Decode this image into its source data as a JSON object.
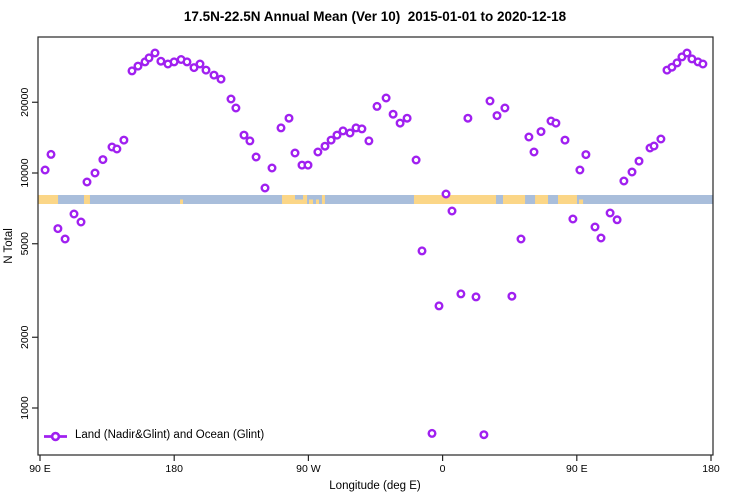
{
  "title": "17.5N-22.5N Annual Mean (Ver 10)  2015-01-01 to 2020-12-18",
  "colors": {
    "marker": "#a020f0",
    "ocean": "#a9bedb",
    "land": "#fbd687",
    "axis": "#262626",
    "text": "#000000",
    "background": "#ffffff"
  },
  "chart_data": {
    "type": "scatter",
    "title": "17.5N-22.5N Annual Mean (Ver 10)  2015-01-01 to 2020-12-18",
    "xlabel": "Longitude (deg E)",
    "ylabel": "N Total",
    "x_axis": {
      "note": "longitude axis wraps eastward from 90E to 180 (displayed 90..540 deg)",
      "tick_positions_deg": [
        90,
        180,
        270,
        360,
        450,
        540
      ],
      "tick_labels": [
        "90 E",
        "180",
        "90 W",
        "0",
        "90 E",
        "180"
      ],
      "range_deg": [
        88.7,
        541.3
      ]
    },
    "y_axis": {
      "scale": "log10",
      "tick_values": [
        1000,
        2000,
        5000,
        10000,
        20000
      ],
      "tick_labels": [
        "1000",
        "2000",
        "5000",
        "10000",
        "20000"
      ],
      "range": [
        620,
        38000
      ],
      "grid": false
    },
    "legend": {
      "position": "bottom-left-inside",
      "entries": [
        {
          "label": "Land (Nadir&Glint) and Ocean (Glint)",
          "marker": "open-circle-on-line",
          "color": "#a020f0"
        }
      ]
    },
    "map_strip": {
      "description": "land/ocean map band drawn across the plot near N=7700",
      "value_range": [
        7380,
        8060
      ],
      "ocean_color": "#a9bedb",
      "land_color": "#fbd687",
      "spans_full_width": true,
      "land_segments_deg": [
        {
          "from": 88.7,
          "to": 102.1,
          "half": false
        },
        {
          "from": 119.5,
          "to": 123.5,
          "half": false
        },
        {
          "from": 183.9,
          "to": 185.9,
          "half": true
        },
        {
          "from": 252.3,
          "to": 269.1,
          "half": false
        },
        {
          "from": 270.4,
          "to": 273.1,
          "half": true
        },
        {
          "from": 275.1,
          "to": 277.1,
          "half": true
        },
        {
          "from": 279.1,
          "to": 281.1,
          "half": false
        },
        {
          "from": 340.8,
          "to": 395.8,
          "half": false
        },
        {
          "from": 400.5,
          "to": 415.3,
          "half": false
        },
        {
          "from": 422.0,
          "to": 430.7,
          "half": false
        },
        {
          "from": 437.4,
          "to": 450.1,
          "half": false
        },
        {
          "from": 451.5,
          "to": 454.2,
          "half": true
        }
      ],
      "ocean_notches_deg": [
        {
          "from": 261.0,
          "to": 266.4
        }
      ]
    },
    "series": [
      {
        "name": "Land (Nadir&Glint) and Ocean (Glint)",
        "marker": "open-circle",
        "marker_color": "#a020f0",
        "points_lon_n": [
          [
            93.4,
            10300
          ],
          [
            97.4,
            12000
          ],
          [
            102.0,
            5800
          ],
          [
            106.8,
            5240
          ],
          [
            112.8,
            6690
          ],
          [
            117.5,
            6190
          ],
          [
            121.5,
            9160
          ],
          [
            126.9,
            10000
          ],
          [
            132.2,
            11400
          ],
          [
            138.3,
            12900
          ],
          [
            141.6,
            12650
          ],
          [
            146.3,
            13800
          ],
          [
            151.7,
            27200
          ],
          [
            155.7,
            28500
          ],
          [
            160.4,
            29700
          ],
          [
            163.1,
            30900
          ],
          [
            167.1,
            32400
          ],
          [
            171.1,
            29900
          ],
          [
            175.8,
            29100
          ],
          [
            179.9,
            29700
          ],
          [
            184.6,
            30400
          ],
          [
            188.6,
            29700
          ],
          [
            193.3,
            28100
          ],
          [
            197.3,
            29100
          ],
          [
            201.3,
            27400
          ],
          [
            206.7,
            26100
          ],
          [
            211.4,
            25100
          ],
          [
            218.1,
            20650
          ],
          [
            221.4,
            18900
          ],
          [
            226.8,
            14500
          ],
          [
            230.8,
            13700
          ],
          [
            234.9,
            11700
          ],
          [
            240.9,
            8630
          ],
          [
            245.6,
            10500
          ],
          [
            251.6,
            15550
          ],
          [
            257.0,
            17100
          ],
          [
            261.0,
            12160
          ],
          [
            265.7,
            10800
          ],
          [
            269.7,
            10800
          ],
          [
            276.4,
            12280
          ],
          [
            281.1,
            13000
          ],
          [
            285.2,
            13800
          ],
          [
            289.2,
            14500
          ],
          [
            293.2,
            15100
          ],
          [
            297.9,
            14800
          ],
          [
            301.9,
            15550
          ],
          [
            305.9,
            15400
          ],
          [
            310.6,
            13700
          ],
          [
            316.0,
            19200
          ],
          [
            322.1,
            20850
          ],
          [
            326.8,
            17800
          ],
          [
            331.5,
            16300
          ],
          [
            336.2,
            17100
          ],
          [
            342.2,
            11360
          ],
          [
            346.2,
            4660
          ],
          [
            352.9,
            780
          ],
          [
            357.6,
            2720
          ],
          [
            362.3,
            8140
          ],
          [
            366.3,
            6890
          ],
          [
            372.3,
            3060
          ],
          [
            377.0,
            17100
          ],
          [
            382.4,
            2970
          ],
          [
            387.7,
            770
          ],
          [
            391.8,
            20250
          ],
          [
            396.5,
            17550
          ],
          [
            401.8,
            18900
          ],
          [
            406.5,
            2990
          ],
          [
            412.6,
            5240
          ],
          [
            417.9,
            14230
          ],
          [
            421.3,
            12290
          ],
          [
            426.0,
            15000
          ],
          [
            432.7,
            16650
          ],
          [
            436.0,
            16300
          ],
          [
            442.1,
            13800
          ],
          [
            447.4,
            6370
          ],
          [
            452.1,
            10300
          ],
          [
            456.1,
            11970
          ],
          [
            462.2,
            5890
          ],
          [
            466.2,
            5290
          ],
          [
            472.3,
            6760
          ],
          [
            477.0,
            6320
          ],
          [
            481.6,
            9250
          ],
          [
            487.0,
            10100
          ],
          [
            491.7,
            11240
          ],
          [
            499.1,
            12770
          ],
          [
            501.8,
            13030
          ],
          [
            506.4,
            13950
          ],
          [
            510.5,
            27400
          ],
          [
            513.8,
            28200
          ],
          [
            517.2,
            29400
          ],
          [
            520.5,
            31200
          ],
          [
            523.9,
            32400
          ],
          [
            527.2,
            30600
          ],
          [
            531.3,
            29700
          ],
          [
            534.6,
            29100
          ]
        ]
      }
    ]
  }
}
